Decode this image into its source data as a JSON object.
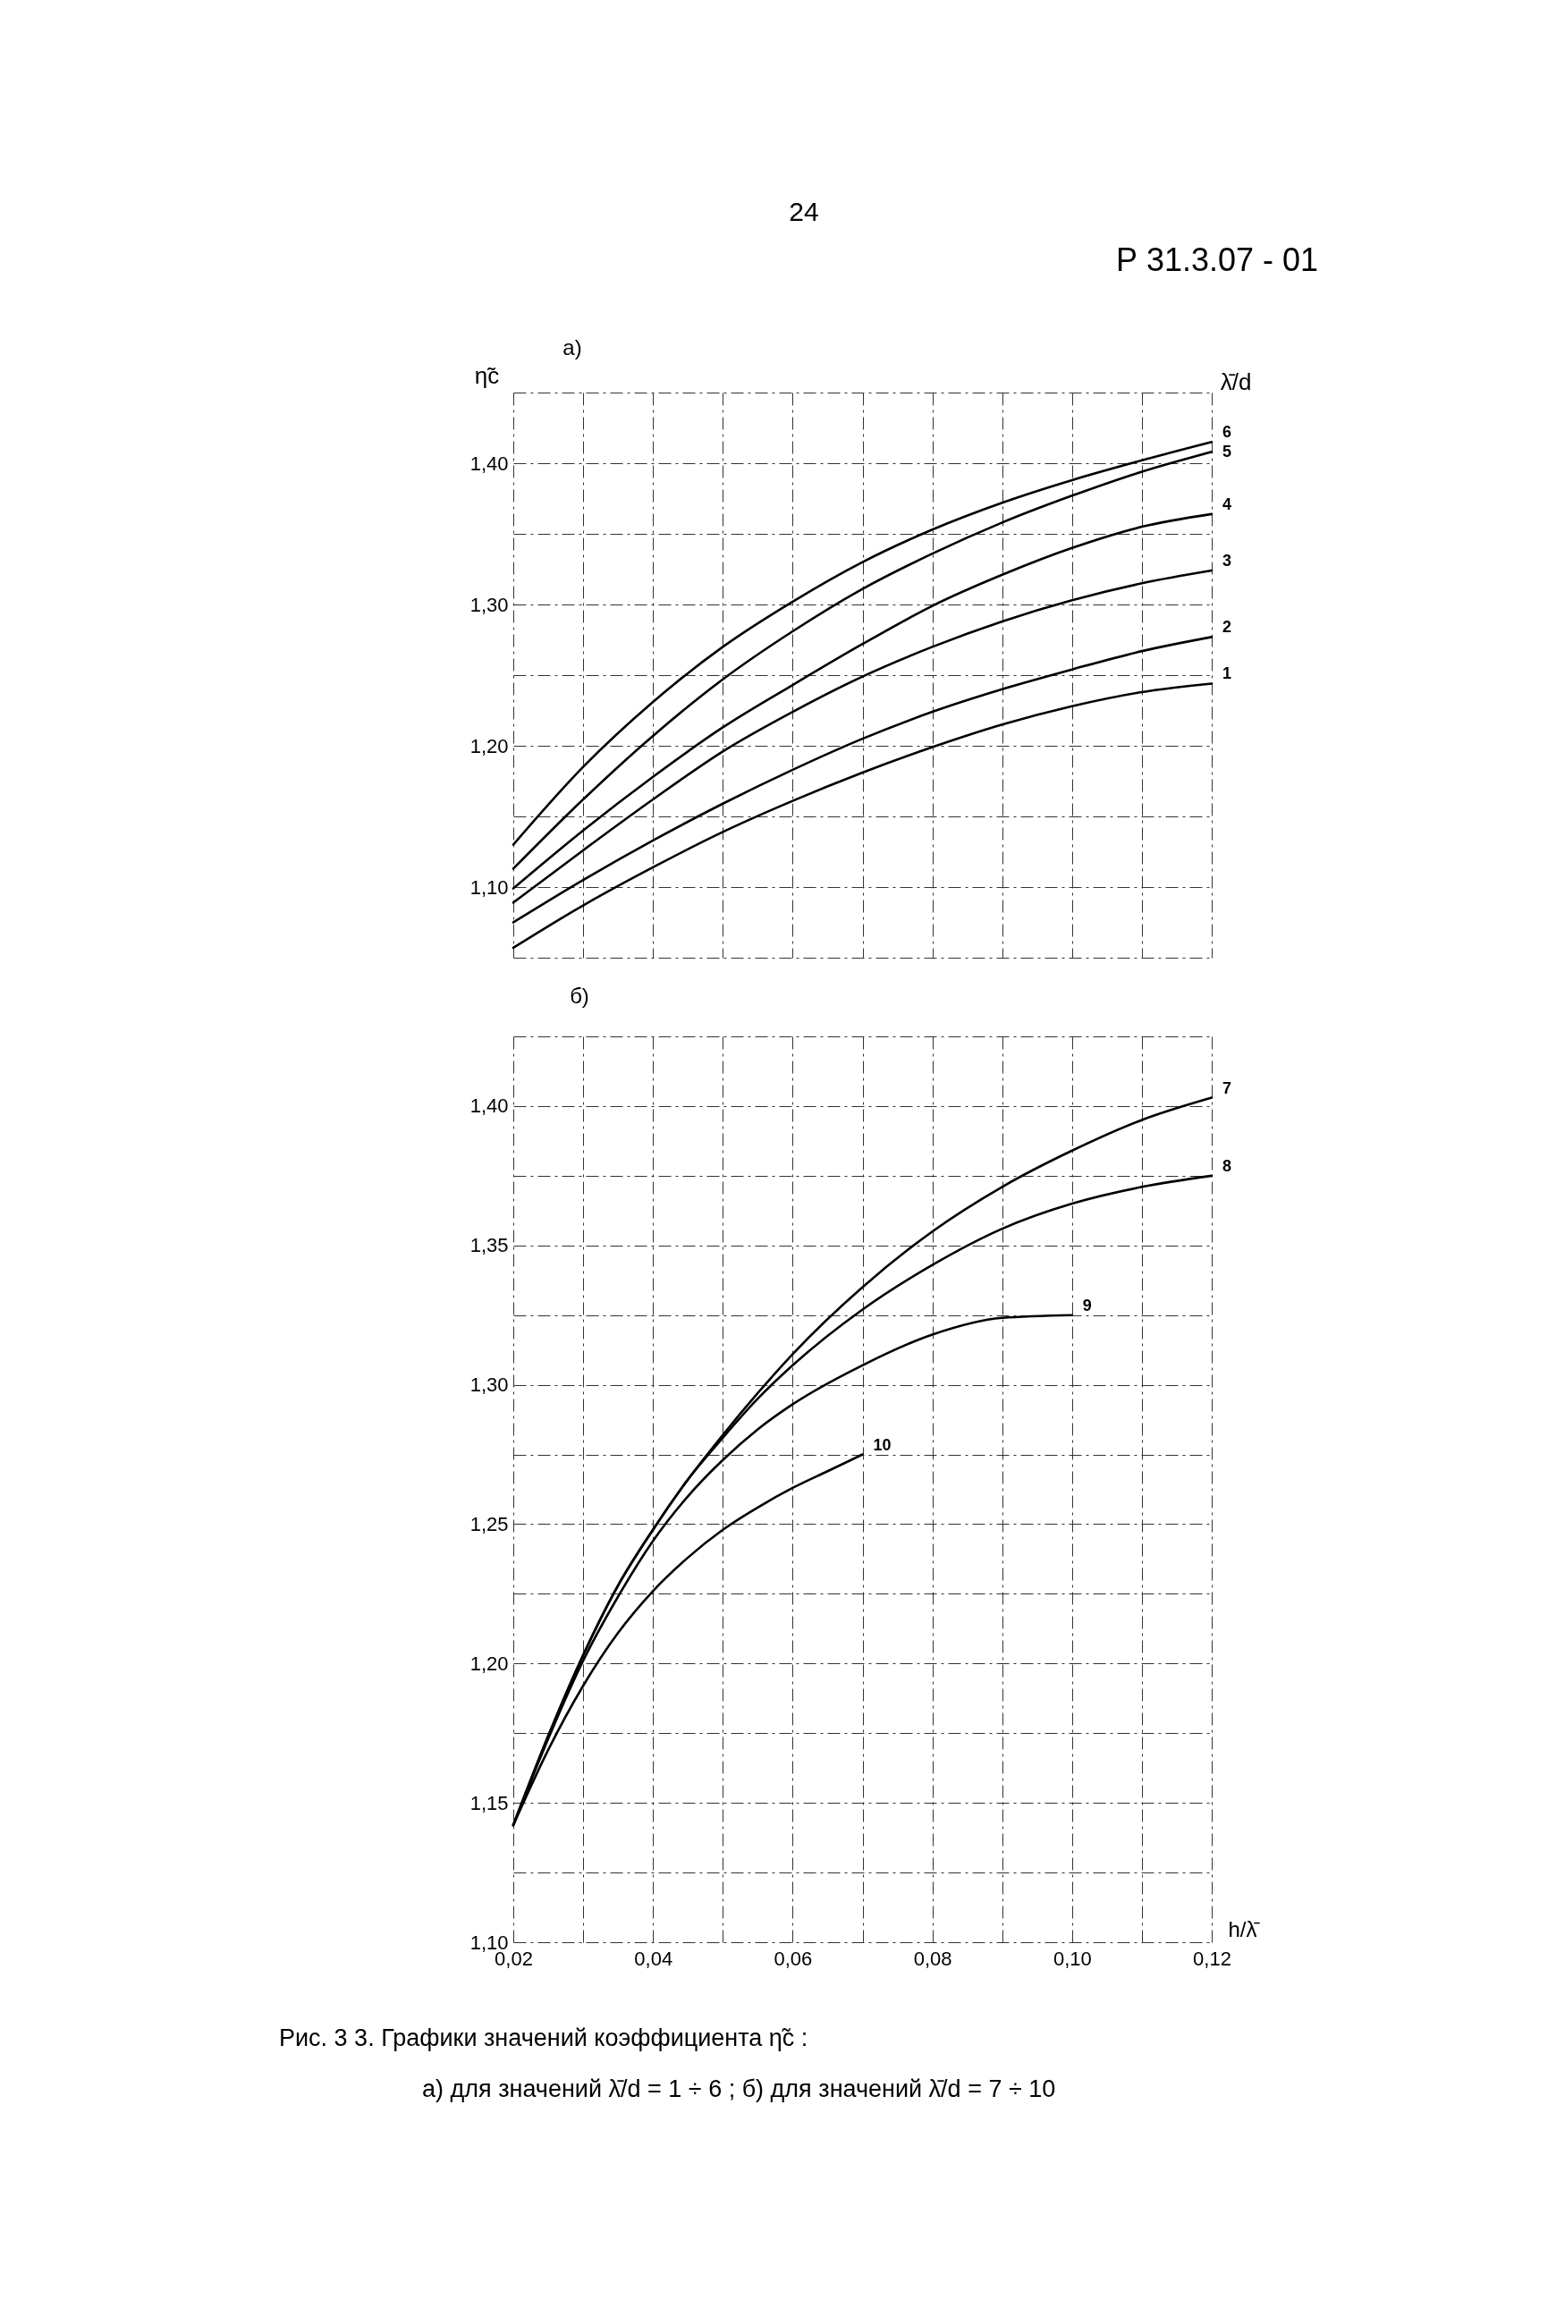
{
  "chart_data": [
    {
      "type": "line",
      "title": "а)",
      "ylabel": "η̃c",
      "legend_title": "λ̄/d",
      "annotations": [
        "24",
        "Р 31.3.07 - 01"
      ],
      "x": [
        0.02,
        0.03,
        0.04,
        0.05,
        0.06,
        0.07,
        0.08,
        0.09,
        0.1,
        0.11,
        0.12
      ],
      "series": [
        {
          "name": "1",
          "color": "#000000",
          "values": [
            1.057,
            1.087,
            1.114,
            1.139,
            1.161,
            1.181,
            1.199,
            1.215,
            1.228,
            1.238,
            1.244
          ]
        },
        {
          "name": "2",
          "color": "#000000",
          "values": [
            1.075,
            1.105,
            1.133,
            1.159,
            1.183,
            1.205,
            1.224,
            1.24,
            1.254,
            1.267,
            1.277
          ]
        },
        {
          "name": "3",
          "color": "#000000",
          "values": [
            1.089,
            1.126,
            1.162,
            1.196,
            1.224,
            1.249,
            1.27,
            1.288,
            1.303,
            1.315,
            1.324
          ]
        },
        {
          "name": "4",
          "color": "#000000",
          "values": [
            1.099,
            1.14,
            1.178,
            1.213,
            1.243,
            1.272,
            1.299,
            1.321,
            1.34,
            1.355,
            1.364
          ]
        },
        {
          "name": "5",
          "color": "#000000",
          "values": [
            1.113,
            1.162,
            1.207,
            1.247,
            1.281,
            1.311,
            1.336,
            1.358,
            1.377,
            1.394,
            1.408
          ]
        },
        {
          "name": "6",
          "color": "#000000",
          "values": [
            1.13,
            1.185,
            1.231,
            1.27,
            1.302,
            1.33,
            1.353,
            1.372,
            1.388,
            1.402,
            1.415
          ]
        }
      ],
      "xlim": [
        0.02,
        0.12
      ],
      "ylim": [
        1.05,
        1.45
      ],
      "xticks": [
        0.02,
        0.03,
        0.04,
        0.05,
        0.06,
        0.07,
        0.08,
        0.09,
        0.1,
        0.11,
        0.12
      ],
      "yticks": [
        {
          "value": 1.05,
          "label": null
        },
        {
          "value": 1.1,
          "label": "1,10"
        },
        {
          "value": 1.15,
          "label": null
        },
        {
          "value": 1.2,
          "label": "1,20"
        },
        {
          "value": 1.25,
          "label": null
        },
        {
          "value": 1.3,
          "label": "1,30"
        },
        {
          "value": 1.35,
          "label": null
        },
        {
          "value": 1.4,
          "label": "1,40"
        },
        {
          "value": 1.45,
          "label": null
        }
      ],
      "grid": true,
      "tick_labels": "y"
    },
    {
      "type": "line",
      "title": "б)",
      "xlabel": "h/λ̄",
      "annotations": [
        "Рис. 3 3. Графики значений коэффициента η̃c :",
        "а) для значений λ̄/d = 1 ÷ 6 ;  б) для значений λ̄/d = 7 ÷ 10"
      ],
      "x": [
        0.02,
        0.025,
        0.03,
        0.035,
        0.04,
        0.045,
        0.05,
        0.055,
        0.06,
        0.07,
        0.08,
        0.09,
        0.1,
        0.11,
        0.12
      ],
      "series": [
        {
          "name": "7",
          "color": "#000000",
          "values": [
            1.142,
            1.174,
            1.203,
            1.228,
            1.248,
            1.266,
            1.282,
            1.297,
            1.311,
            1.335,
            1.355,
            1.371,
            1.384,
            1.395,
            1.403
          ]
        },
        {
          "name": "8",
          "color": "#000000",
          "values": [
            1.142,
            1.174,
            1.203,
            1.228,
            1.248,
            1.266,
            1.281,
            1.295,
            1.307,
            1.327,
            1.343,
            1.356,
            1.365,
            1.371,
            1.375
          ]
        },
        {
          "name": "9",
          "color": "#000000",
          "x": [
            0.02,
            0.025,
            0.03,
            0.035,
            0.04,
            0.045,
            0.05,
            0.055,
            0.06,
            0.07,
            0.08,
            0.09,
            0.1
          ],
          "values": [
            1.142,
            1.173,
            1.201,
            1.224,
            1.244,
            1.26,
            1.273,
            1.284,
            1.293,
            1.307,
            1.318,
            1.324,
            1.325
          ]
        },
        {
          "name": "10",
          "color": "#000000",
          "x": [
            0.02,
            0.025,
            0.03,
            0.035,
            0.04,
            0.045,
            0.05,
            0.055,
            0.06,
            0.065,
            0.07
          ],
          "values": [
            1.142,
            1.169,
            1.192,
            1.211,
            1.226,
            1.238,
            1.248,
            1.256,
            1.263,
            1.269,
            1.275
          ]
        }
      ],
      "xlim": [
        0.02,
        0.12
      ],
      "ylim": [
        1.1,
        1.425
      ],
      "xticks": [
        {
          "value": 0.02,
          "label": "0,02"
        },
        {
          "value": 0.03,
          "label": null
        },
        {
          "value": 0.04,
          "label": "0,04"
        },
        {
          "value": 0.05,
          "label": null
        },
        {
          "value": 0.06,
          "label": "0,06"
        },
        {
          "value": 0.07,
          "label": null
        },
        {
          "value": 0.08,
          "label": "0,08"
        },
        {
          "value": 0.09,
          "label": null
        },
        {
          "value": 0.1,
          "label": "0,10"
        },
        {
          "value": 0.11,
          "label": null
        },
        {
          "value": 0.12,
          "label": "0,12"
        }
      ],
      "yticks": [
        {
          "value": 1.1,
          "label": "1,10"
        },
        {
          "value": 1.125,
          "label": null
        },
        {
          "value": 1.15,
          "label": "1,15"
        },
        {
          "value": 1.175,
          "label": null
        },
        {
          "value": 1.2,
          "label": "1,20"
        },
        {
          "value": 1.225,
          "label": null
        },
        {
          "value": 1.25,
          "label": "1,25"
        },
        {
          "value": 1.275,
          "label": null
        },
        {
          "value": 1.3,
          "label": "1,30"
        },
        {
          "value": 1.325,
          "label": null
        },
        {
          "value": 1.35,
          "label": "1,35"
        },
        {
          "value": 1.375,
          "label": null
        },
        {
          "value": 1.4,
          "label": "1,40"
        },
        {
          "value": 1.425,
          "label": null
        }
      ],
      "grid": true
    }
  ]
}
